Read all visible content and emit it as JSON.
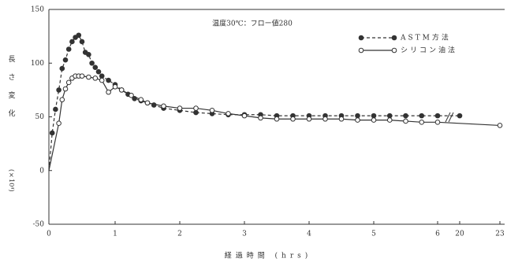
{
  "chart_data": {
    "type": "line",
    "annotation": "温度30℃：フロー値280",
    "y_label": "長さ変化",
    "y_unit": "(×10⁴)",
    "x_label": "経過時間 (hrs)",
    "xlim": [
      0,
      23
    ],
    "xticks": [
      0,
      1,
      2,
      3,
      4,
      5,
      6,
      20,
      23
    ],
    "ylim": [
      -50,
      150
    ],
    "yticks": [
      -50,
      0,
      50,
      100,
      150
    ],
    "series": [
      {
        "name": "ASTM方法",
        "color": "#333333",
        "line_style": "dashed",
        "marker_fill": "filled",
        "x": [
          0,
          0.05,
          0.1,
          0.15,
          0.2,
          0.25,
          0.3,
          0.35,
          0.4,
          0.45,
          0.5,
          0.55,
          0.6,
          0.65,
          0.7,
          0.75,
          0.8,
          0.9,
          1.0,
          1.1,
          1.2,
          1.3,
          1.4,
          1.5,
          1.6,
          1.75,
          2.0,
          2.25,
          2.5,
          2.75,
          3.0,
          3.25,
          3.5,
          3.75,
          4.0,
          4.25,
          4.5,
          4.75,
          5.0,
          5.25,
          5.5,
          5.75,
          6.0,
          20
        ],
        "values": [
          0,
          35,
          57,
          75,
          95,
          103,
          113,
          120,
          124,
          126,
          120,
          110,
          108,
          100,
          96,
          92,
          88,
          84,
          80,
          75,
          71,
          67,
          65,
          63,
          61,
          58,
          56,
          54,
          53,
          52,
          52,
          52,
          51,
          51,
          51,
          51,
          51,
          51,
          51,
          51,
          51,
          51,
          51,
          51
        ]
      },
      {
        "name": "シリコン油法",
        "color": "#333333",
        "line_style": "solid",
        "marker_fill": "open",
        "x": [
          0,
          0.15,
          0.2,
          0.25,
          0.3,
          0.35,
          0.4,
          0.45,
          0.5,
          0.6,
          0.7,
          0.8,
          0.9,
          1.0,
          1.1,
          1.25,
          1.4,
          1.5,
          1.75,
          2.0,
          2.25,
          2.5,
          2.75,
          3.0,
          3.25,
          3.5,
          3.75,
          4.0,
          4.25,
          4.5,
          4.75,
          5.0,
          5.25,
          5.5,
          5.75,
          6.0,
          23
        ],
        "values": [
          0,
          44,
          66,
          76,
          82,
          86,
          88,
          88,
          88,
          87,
          86,
          84,
          73,
          78,
          75,
          70,
          66,
          63,
          60,
          58,
          58,
          56,
          53,
          51,
          49,
          48,
          48,
          48,
          48,
          48,
          47,
          47,
          47,
          46,
          45,
          45,
          42
        ]
      }
    ]
  }
}
